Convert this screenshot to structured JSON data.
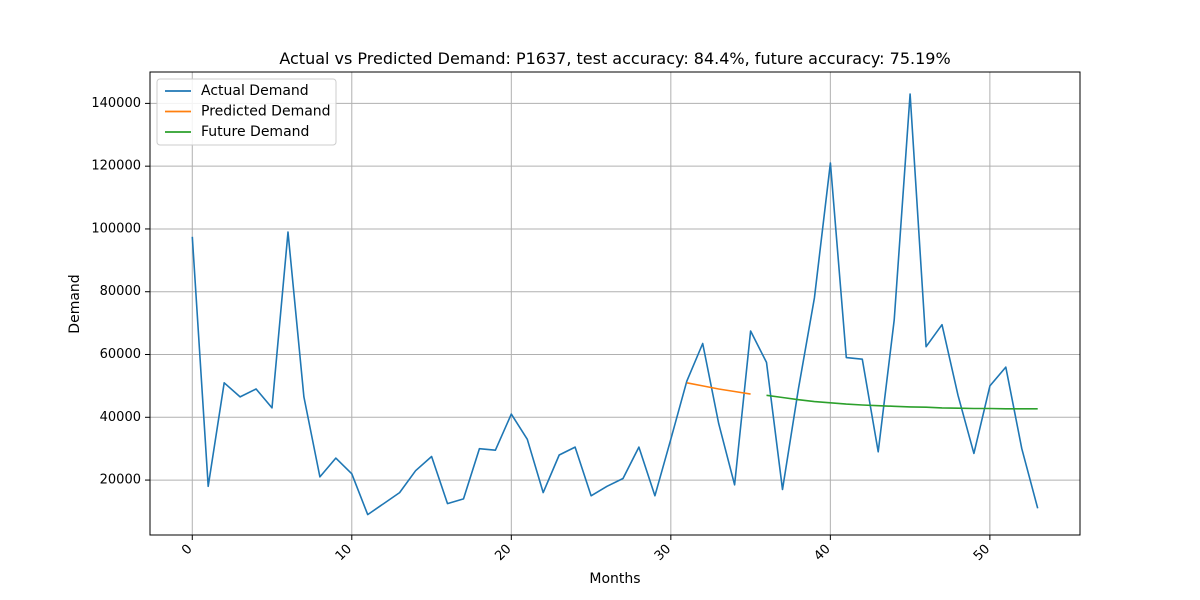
{
  "chart_data": {
    "type": "line",
    "title": "Actual vs Predicted Demand: P1637, test accuracy: 84.4%, future accuracy: 75.19%",
    "xlabel": "Months",
    "ylabel": "Demand",
    "xlim": [
      -2.65,
      55.65
    ],
    "ylim": [
      2500,
      150000
    ],
    "x_ticks": [
      0,
      10,
      20,
      30,
      40,
      50
    ],
    "x_tick_labels": [
      "0",
      "10",
      "20",
      "30",
      "40",
      "50"
    ],
    "y_ticks": [
      20000,
      40000,
      60000,
      80000,
      100000,
      120000,
      140000
    ],
    "y_tick_labels": [
      "20000",
      "40000",
      "60000",
      "80000",
      "100000",
      "120000",
      "140000"
    ],
    "grid": true,
    "legend_position": "upper-left",
    "series": [
      {
        "name": "Actual Demand",
        "color": "#1f77b4",
        "x": [
          0,
          1,
          2,
          3,
          4,
          5,
          6,
          7,
          8,
          9,
          10,
          11,
          12,
          13,
          14,
          15,
          16,
          17,
          18,
          19,
          20,
          21,
          22,
          23,
          24,
          25,
          26,
          27,
          28,
          29,
          30,
          31,
          32,
          33,
          34,
          35,
          36,
          37,
          38,
          39,
          40,
          41,
          42,
          43,
          44,
          45,
          46,
          47,
          48,
          49,
          50,
          51,
          52,
          53
        ],
        "y": [
          97500,
          18000,
          51000,
          46500,
          49000,
          43000,
          99000,
          46500,
          21000,
          27000,
          22000,
          9000,
          12500,
          16000,
          23000,
          27500,
          12500,
          14000,
          30000,
          29500,
          41000,
          33000,
          16000,
          28000,
          30500,
          15000,
          18000,
          20500,
          30500,
          15000,
          33000,
          51500,
          63500,
          38000,
          18500,
          67500,
          57500,
          17000,
          49000,
          78000,
          121000,
          59000,
          58500,
          29000,
          71000,
          143000,
          62500,
          69500,
          47000,
          28500,
          50000,
          56000,
          30000,
          11000
        ]
      },
      {
        "name": "Predicted Demand",
        "color": "#ff7f0e",
        "x": [
          31,
          32,
          33,
          34,
          35
        ],
        "y": [
          51000,
          50000,
          49000,
          48200,
          47400
        ]
      },
      {
        "name": "Future Demand",
        "color": "#2ca02c",
        "x": [
          36,
          37,
          38,
          39,
          40,
          41,
          42,
          43,
          44,
          45,
          46,
          47,
          48,
          49,
          50,
          51,
          52,
          53
        ],
        "y": [
          47000,
          46300,
          45600,
          45000,
          44600,
          44200,
          43900,
          43700,
          43500,
          43300,
          43200,
          43000,
          42900,
          42800,
          42800,
          42700,
          42700,
          42700
        ]
      }
    ]
  }
}
